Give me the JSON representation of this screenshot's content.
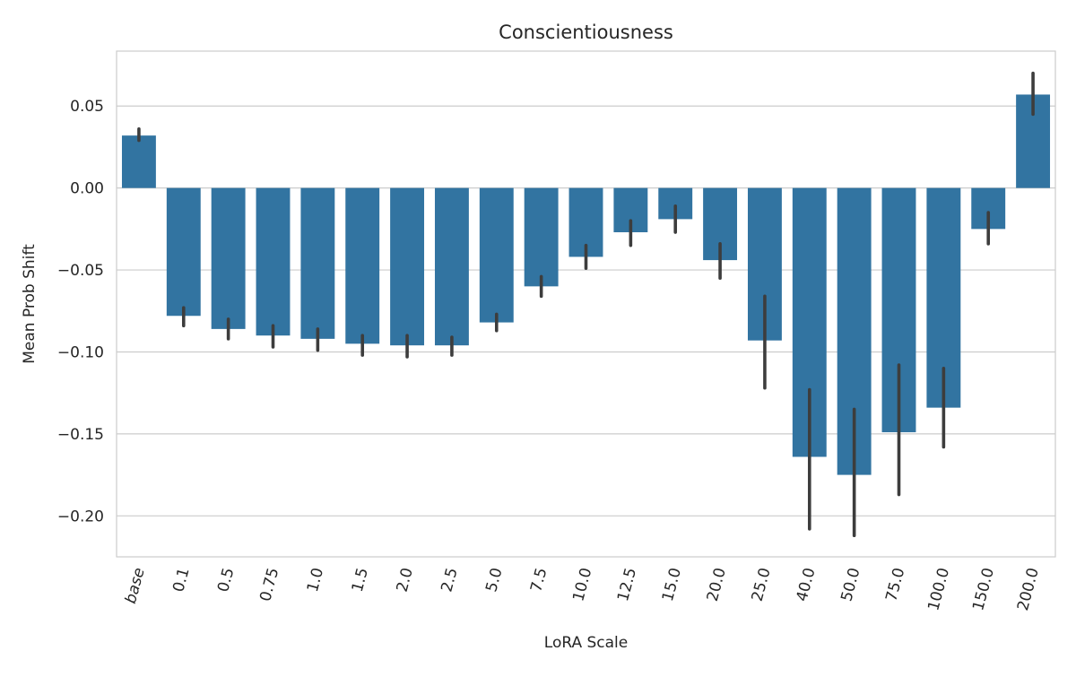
{
  "chart_data": {
    "type": "bar",
    "title": "Conscientiousness",
    "xlabel": "LoRA Scale",
    "ylabel": "Mean Prob Shift",
    "ylim": [
      -0.225,
      0.0835
    ],
    "yticks": [
      0.05,
      0.0,
      -0.05,
      -0.1,
      -0.15,
      -0.2
    ],
    "ytick_labels": [
      "0.05",
      "0.00",
      "−0.05",
      "−0.10",
      "−0.15",
      "−0.20"
    ],
    "grid": true,
    "color": "#3274a1",
    "error_color": "#3d3d3d",
    "categories": [
      "base",
      "0.1",
      "0.5",
      "0.75",
      "1.0",
      "1.5",
      "2.0",
      "2.5",
      "5.0",
      "7.5",
      "10.0",
      "12.5",
      "15.0",
      "20.0",
      "25.0",
      "40.0",
      "50.0",
      "75.0",
      "100.0",
      "150.0",
      "200.0"
    ],
    "values": [
      0.032,
      -0.078,
      -0.086,
      -0.09,
      -0.092,
      -0.095,
      -0.096,
      -0.096,
      -0.082,
      -0.06,
      -0.042,
      -0.027,
      -0.019,
      -0.044,
      -0.093,
      -0.164,
      -0.175,
      -0.149,
      -0.134,
      -0.025,
      0.057
    ],
    "error_low": [
      0.029,
      -0.084,
      -0.092,
      -0.097,
      -0.099,
      -0.102,
      -0.103,
      -0.102,
      -0.087,
      -0.066,
      -0.049,
      -0.035,
      -0.027,
      -0.055,
      -0.122,
      -0.208,
      -0.212,
      -0.187,
      -0.158,
      -0.034,
      0.045
    ],
    "error_high": [
      0.036,
      -0.073,
      -0.08,
      -0.084,
      -0.086,
      -0.09,
      -0.09,
      -0.091,
      -0.077,
      -0.054,
      -0.035,
      -0.02,
      -0.011,
      -0.034,
      -0.066,
      -0.123,
      -0.135,
      -0.108,
      -0.11,
      -0.015,
      0.07
    ]
  }
}
